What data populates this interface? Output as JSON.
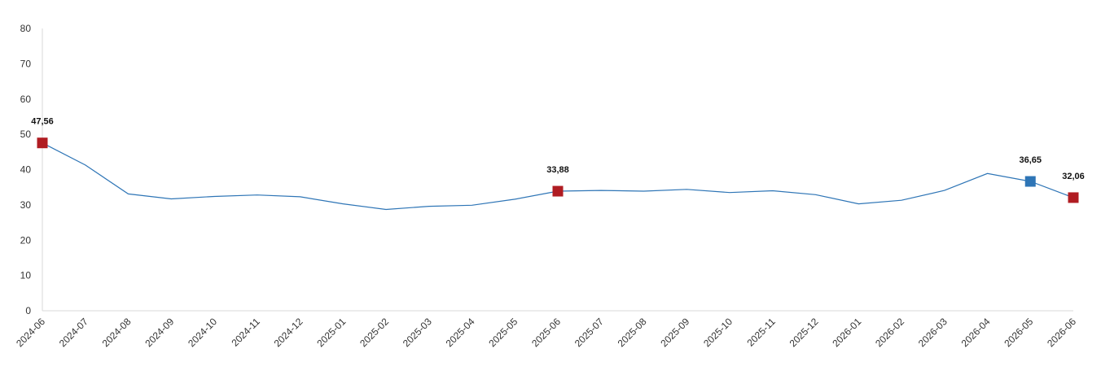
{
  "chart_data": {
    "type": "line",
    "title": "",
    "xlabel": "",
    "ylabel": "",
    "ylim": [
      0,
      80
    ],
    "yticks": [
      0,
      10,
      20,
      30,
      40,
      50,
      60,
      70,
      80
    ],
    "grid": false,
    "legend": "none",
    "x": [
      "2024-06",
      "2024-07",
      "2024-08",
      "2024-09",
      "2024-10",
      "2024-11",
      "2024-12",
      "2025-01",
      "2025-02",
      "2025-03",
      "2025-04",
      "2025-05",
      "2025-06",
      "2025-07",
      "2025-08",
      "2025-09",
      "2025-10",
      "2025-11",
      "2025-12",
      "2026-01",
      "2026-02",
      "2026-03",
      "2026-04",
      "2026-05",
      "2026-06"
    ],
    "series": [
      {
        "values": [
          47.56,
          41.3,
          33.1,
          31.7,
          32.4,
          32.8,
          32.3,
          30.3,
          28.7,
          29.6,
          29.9,
          31.6,
          33.88,
          34.1,
          33.9,
          34.4,
          33.5,
          34.0,
          32.9,
          30.3,
          31.3,
          34.1,
          38.9,
          36.65,
          32.06
        ],
        "color": "#2e75b6"
      }
    ],
    "markers": [
      {
        "x": "2024-06",
        "value": 47.56,
        "label": "47,56",
        "color": "#b01c22"
      },
      {
        "x": "2025-06",
        "value": 33.88,
        "label": "33,88",
        "color": "#b01c22"
      },
      {
        "x": "2026-05",
        "value": 36.65,
        "label": "36,65",
        "color": "#2e75b6"
      },
      {
        "x": "2026-06",
        "value": 32.06,
        "label": "32,06",
        "color": "#b01c22"
      }
    ]
  }
}
